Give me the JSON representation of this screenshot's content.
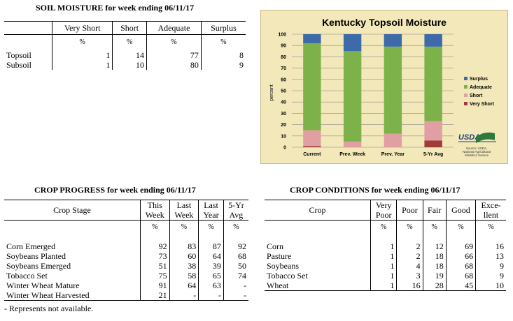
{
  "soil": {
    "title": "SOIL MOISTURE for week ending 06/11/17",
    "headers": [
      "",
      "Very Short",
      "Short",
      "Adequate",
      "Surplus"
    ],
    "units": [
      "",
      "%",
      "%",
      "%",
      "%"
    ],
    "rows": [
      {
        "label": "Topsoil",
        "v": [
          "1",
          "14",
          "77",
          "8"
        ]
      },
      {
        "label": "Subsoil",
        "v": [
          "1",
          "10",
          "80",
          "9"
        ]
      }
    ]
  },
  "chart_data": {
    "type": "bar",
    "title": "Kentucky Topsoil Moisture",
    "ylabel": "percent",
    "ylim": [
      0,
      100
    ],
    "yticks": [
      "0",
      "10",
      "20",
      "30",
      "40",
      "50",
      "60",
      "70",
      "80",
      "90",
      "100"
    ],
    "categories": [
      "Current",
      "Prev. Week",
      "Prev. Year",
      "5-Yr Avg"
    ],
    "stacked": true,
    "series": [
      {
        "name": "Very Short",
        "color": "#a33a3a",
        "values": [
          1,
          0,
          0,
          6
        ]
      },
      {
        "name": "Short",
        "color": "#e0a0a3",
        "values": [
          14,
          5,
          12,
          17
        ]
      },
      {
        "name": "Adequate",
        "color": "#7db24a",
        "values": [
          77,
          80,
          77,
          66
        ]
      },
      {
        "name": "Surplus",
        "color": "#3d6aa8",
        "values": [
          8,
          15,
          11,
          11
        ]
      }
    ],
    "legend_order": [
      "Surplus",
      "Adequate",
      "Short",
      "Very Short"
    ],
    "legend_position": "right",
    "logo_text": "USDA",
    "source_text": [
      "Source: USDA,",
      "National Agricultural",
      "Statistics Service"
    ]
  },
  "progress": {
    "title": "CROP PROGRESS for week ending 06/11/17",
    "col_label": "Crop Stage",
    "headers": [
      [
        "This",
        "Week"
      ],
      [
        "Last",
        "Week"
      ],
      [
        "Last",
        "Year"
      ],
      [
        "5-Yr",
        "Avg"
      ]
    ],
    "units": [
      "%",
      "%",
      "%",
      "%"
    ],
    "rows": [
      {
        "label": "Corn Emerged",
        "v": [
          "92",
          "83",
          "87",
          "92"
        ]
      },
      {
        "label": "Soybeans Planted",
        "v": [
          "73",
          "60",
          "64",
          "68"
        ]
      },
      {
        "label": "Soybeans Emerged",
        "v": [
          "51",
          "38",
          "39",
          "50"
        ]
      },
      {
        "label": "Tobacco Set",
        "v": [
          "75",
          "58",
          "65",
          "74"
        ]
      },
      {
        "label": "Winter Wheat Mature",
        "v": [
          "91",
          "64",
          "63",
          "-"
        ]
      },
      {
        "label": "Winter Wheat Harvested",
        "v": [
          "21",
          "-",
          "-",
          "-"
        ]
      }
    ],
    "footnote": "- Represents not available."
  },
  "conditions": {
    "title": "CROP CONDITIONS for week ending 06/11/17",
    "col_label": "Crop",
    "headers": [
      [
        "Very",
        "Poor"
      ],
      [
        "Poor"
      ],
      [
        "Fair"
      ],
      [
        "Good"
      ],
      [
        "Exce-",
        "llent"
      ]
    ],
    "units": [
      "%",
      "%",
      "%",
      "%",
      "%"
    ],
    "rows": [
      {
        "label": "Corn",
        "v": [
          "1",
          "2",
          "12",
          "69",
          "16"
        ]
      },
      {
        "label": "Pasture",
        "v": [
          "1",
          "2",
          "18",
          "66",
          "13"
        ]
      },
      {
        "label": "Soybeans",
        "v": [
          "1",
          "4",
          "18",
          "68",
          "9"
        ]
      },
      {
        "label": "Tobacco Set",
        "v": [
          "1",
          "3",
          "19",
          "68",
          "9"
        ]
      },
      {
        "label": "Wheat",
        "v": [
          "1",
          "16",
          "28",
          "45",
          "10"
        ]
      }
    ]
  }
}
